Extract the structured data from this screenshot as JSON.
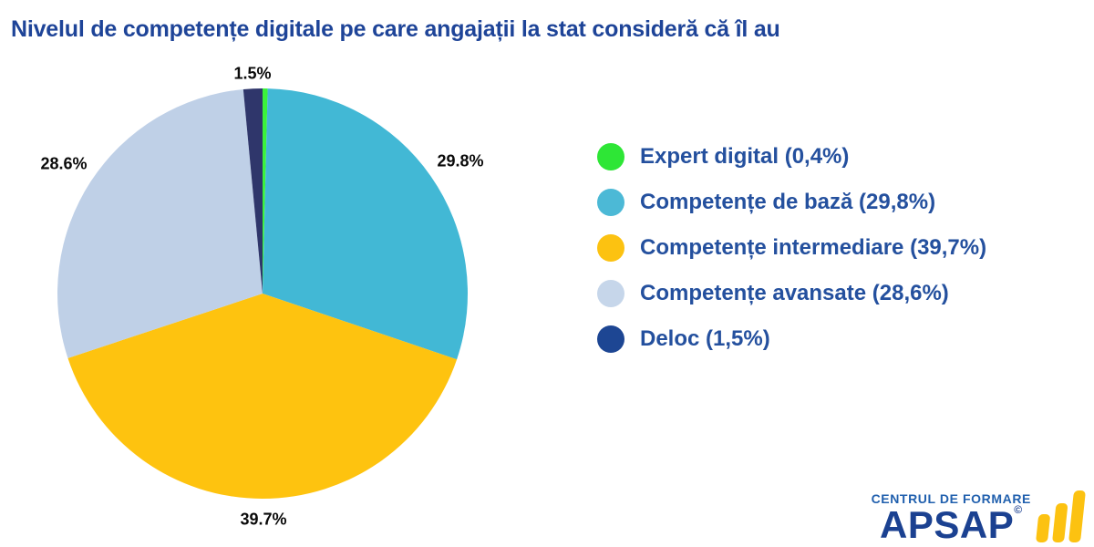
{
  "title": "Nivelul de competențe digitale pe care angajații la stat consideră că îl au",
  "chart_data": {
    "type": "pie",
    "title": "Nivelul de competențe digitale pe care angajații la stat consideră că îl au",
    "start_angle_deg": 0,
    "direction": "clockwise",
    "legend_position": "right",
    "slices": [
      {
        "label": "Expert digital",
        "value_pct": 0.4,
        "color": "#3bf23b",
        "pie_label": ""
      },
      {
        "label": "Competențe de bază",
        "value_pct": 29.8,
        "color": "#42b8d5",
        "pie_label": "29.8%"
      },
      {
        "label": "Competențe intermediare",
        "value_pct": 39.7,
        "color": "#fec30f",
        "pie_label": "39.7%"
      },
      {
        "label": "Competențe avansate",
        "value_pct": 28.6,
        "color": "#bfd0e7",
        "pie_label": "28.6%"
      },
      {
        "label": "Deloc",
        "value_pct": 1.5,
        "color": "#2f366b",
        "pie_label": "1.5%"
      }
    ]
  },
  "legend": {
    "items": [
      {
        "label": "Expert digital (0,4%)",
        "dot_color": "#2ee636"
      },
      {
        "label": "Competențe de bază (29,8%)",
        "dot_color": "#4cb9d6"
      },
      {
        "label": "Competențe intermediare (39,7%)",
        "dot_color": "#fcc211"
      },
      {
        "label": "Competențe avansate (28,6%)",
        "dot_color": "#c6d6ea"
      },
      {
        "label": "Deloc (1,5%)",
        "dot_color": "#1d4693"
      }
    ]
  },
  "footer_logo": {
    "tagline": "CENTRUL DE FORMARE",
    "brand": "APSAP",
    "mark": "©",
    "bar_color": "#fcc211",
    "tagline_color": "#2160ae",
    "brand_color": "#1b4191"
  },
  "colors": {
    "title": "#1e4498",
    "legend_text": "#24509e",
    "pie_label": "#0a0a0a",
    "background": "#ffffff"
  }
}
